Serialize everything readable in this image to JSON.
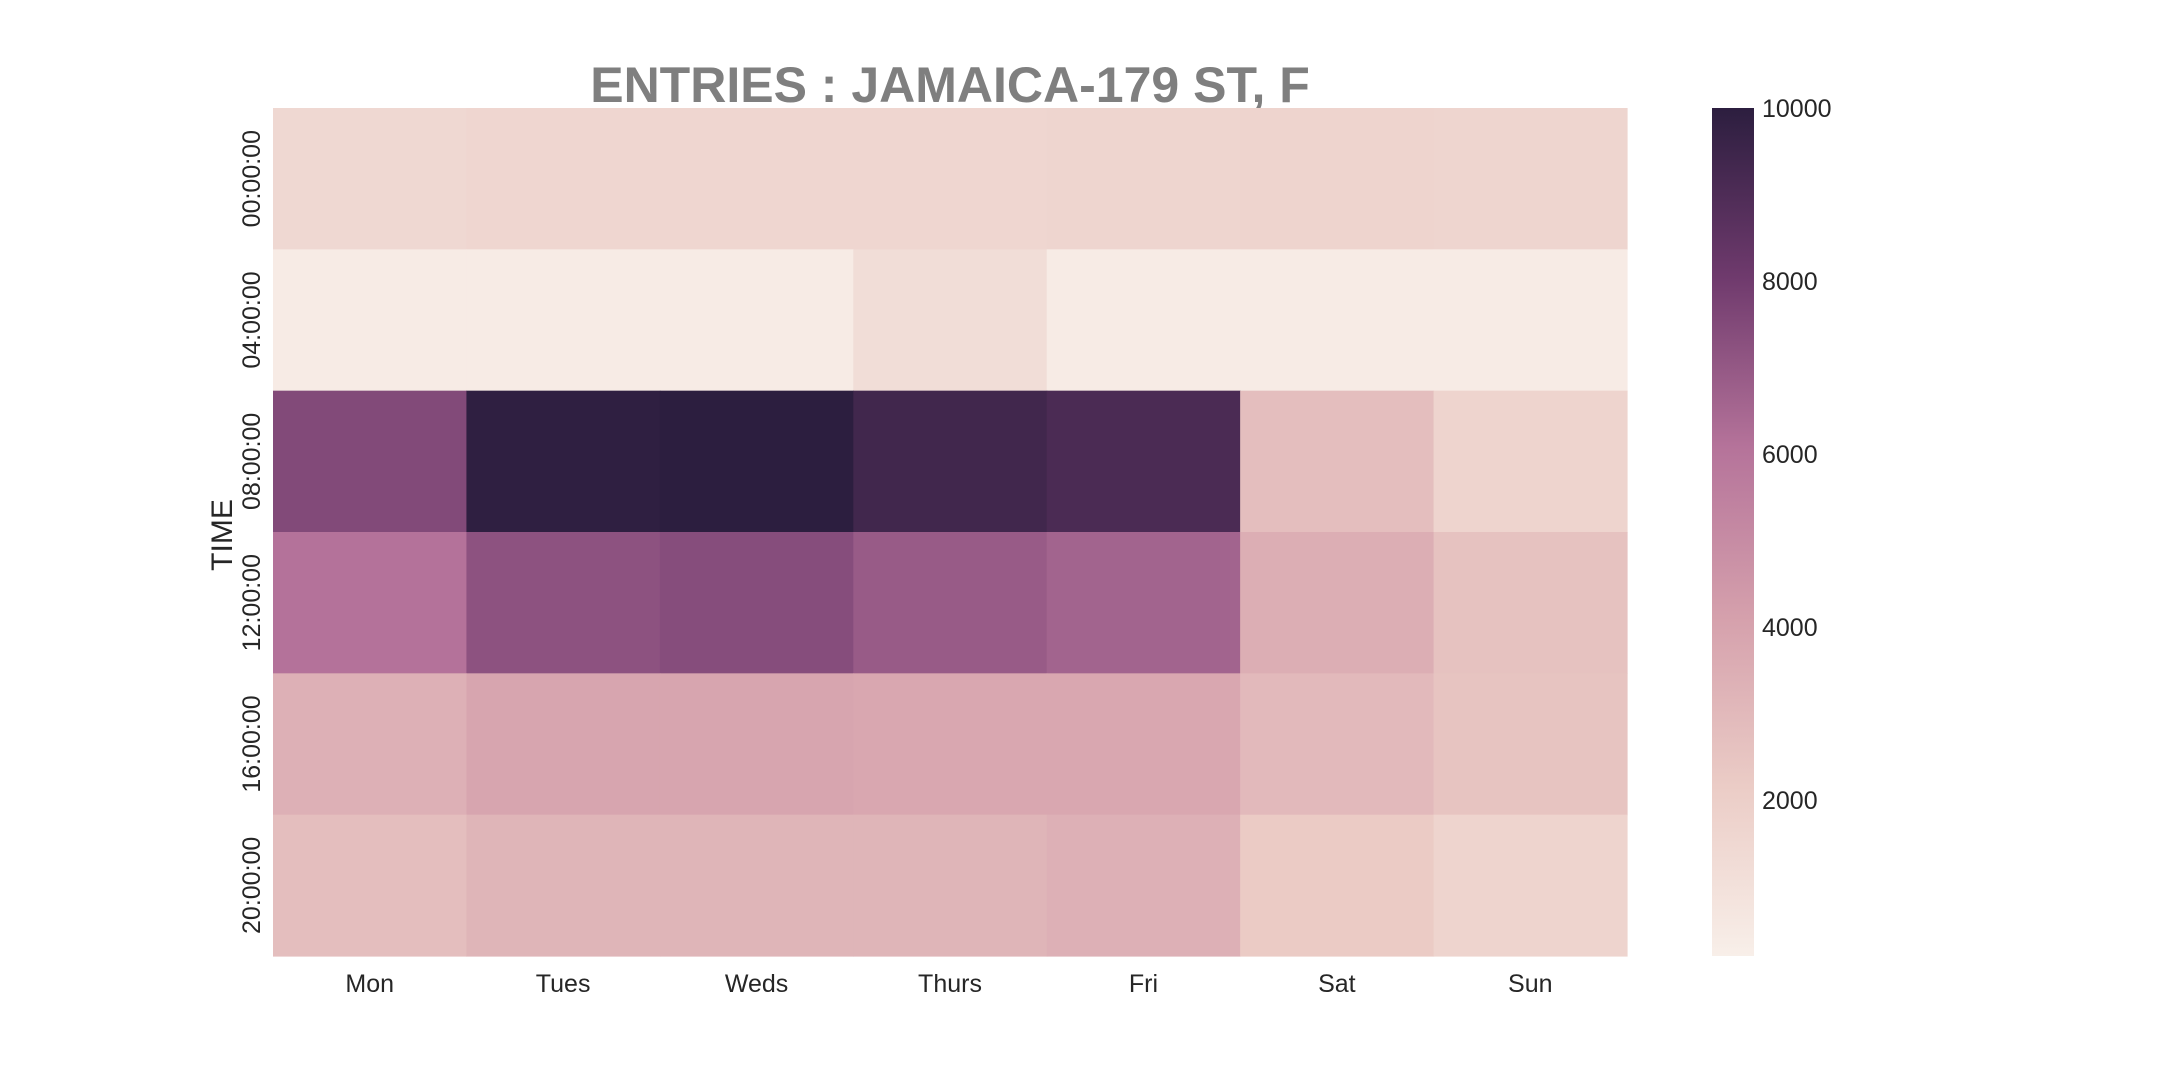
{
  "chart_data": {
    "type": "heatmap",
    "title": "ENTRIES : JAMAICA-179 ST, F",
    "xlabel": "",
    "ylabel": "TIME",
    "x_categories": [
      "Mon",
      "Tues",
      "Weds",
      "Thurs",
      "Fri",
      "Sat",
      "Sun"
    ],
    "y_categories": [
      "00:00:00",
      "04:00:00",
      "08:00:00",
      "12:00:00",
      "16:00:00",
      "20:00:00"
    ],
    "values": [
      [
        1500,
        1600,
        1600,
        1600,
        1650,
        1700,
        1650
      ],
      [
        400,
        400,
        400,
        1200,
        400,
        400,
        400
      ],
      [
        7500,
        9900,
        10000,
        9400,
        9100,
        2800,
        1700
      ],
      [
        6100,
        7200,
        7400,
        6900,
        6600,
        3500,
        2600
      ],
      [
        3400,
        3900,
        3900,
        3800,
        3800,
        3000,
        2500
      ],
      [
        2800,
        3200,
        3200,
        3200,
        3400,
        2200,
        1700
      ]
    ],
    "colorbar": {
      "min": 200,
      "max": 10000,
      "ticks": [
        2000,
        4000,
        6000,
        8000,
        10000
      ],
      "tick_labels": [
        "2000",
        "4000",
        "6000",
        "8000",
        "10000"
      ]
    },
    "colormap": [
      {
        "stop": 0.0,
        "color": "#f8efe9"
      },
      {
        "stop": 0.2,
        "color": "#ebccc6"
      },
      {
        "stop": 0.4,
        "color": "#d5a0ac"
      },
      {
        "stop": 0.6,
        "color": "#b5739a"
      },
      {
        "stop": 0.8,
        "color": "#6f3a6d"
      },
      {
        "stop": 1.0,
        "color": "#2c1e3f"
      }
    ],
    "title_color": "#7f7f7f",
    "grid": false
  }
}
